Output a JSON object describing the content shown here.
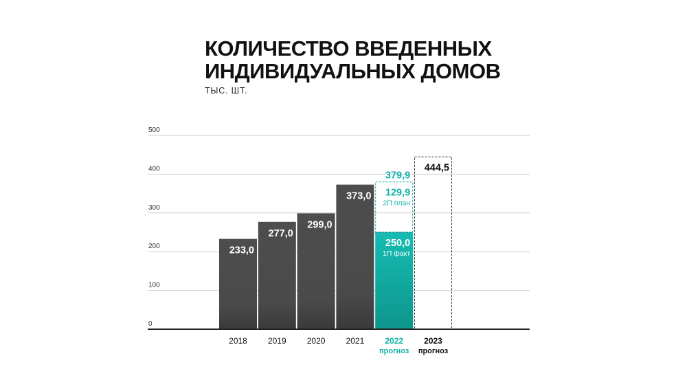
{
  "title_lines": [
    "КОЛИЧЕСТВО ВВЕДЕННЫХ",
    "ИНДИВИДУАЛЬНЫХ ДОМОВ"
  ],
  "unit": "ТЫС. ШТ.",
  "colors": {
    "bar": "#4a4a4a",
    "accent": "#12b2a9",
    "axis": "#222222",
    "grid": "#cfcfcf",
    "text": "#111111"
  },
  "chart_data": {
    "type": "bar",
    "title": "КОЛИЧЕСТВО ВВЕДЕННЫХ ИНДИВИДУАЛЬНЫХ ДОМОВ",
    "ylabel": "ТЫС. ШТ.",
    "ylim": [
      0,
      500
    ],
    "yticks": [
      0,
      100,
      200,
      300,
      400,
      500
    ],
    "grid": true,
    "bars": [
      {
        "category": "2018",
        "value": 233.0,
        "label": "233,0",
        "style": "solid"
      },
      {
        "category": "2019",
        "value": 277.0,
        "label": "277,0",
        "style": "solid"
      },
      {
        "category": "2020",
        "value": 299.0,
        "label": "299,0",
        "style": "solid"
      },
      {
        "category": "2021",
        "value": 373.0,
        "label": "373,0",
        "style": "solid"
      },
      {
        "category": "2022",
        "sublabel": "прогноз",
        "style": "stacked-forecast",
        "total": 379.9,
        "total_label": "379,9",
        "segments": [
          {
            "value": 250.0,
            "label": "250,0",
            "note": "1П факт",
            "style": "accent-solid"
          },
          {
            "value": 129.9,
            "label": "129,9",
            "note": "2П план",
            "style": "accent-dashed"
          }
        ]
      },
      {
        "category": "2023",
        "sublabel": "прогноз",
        "value": 444.5,
        "label": "444,5",
        "style": "dashed"
      }
    ]
  }
}
